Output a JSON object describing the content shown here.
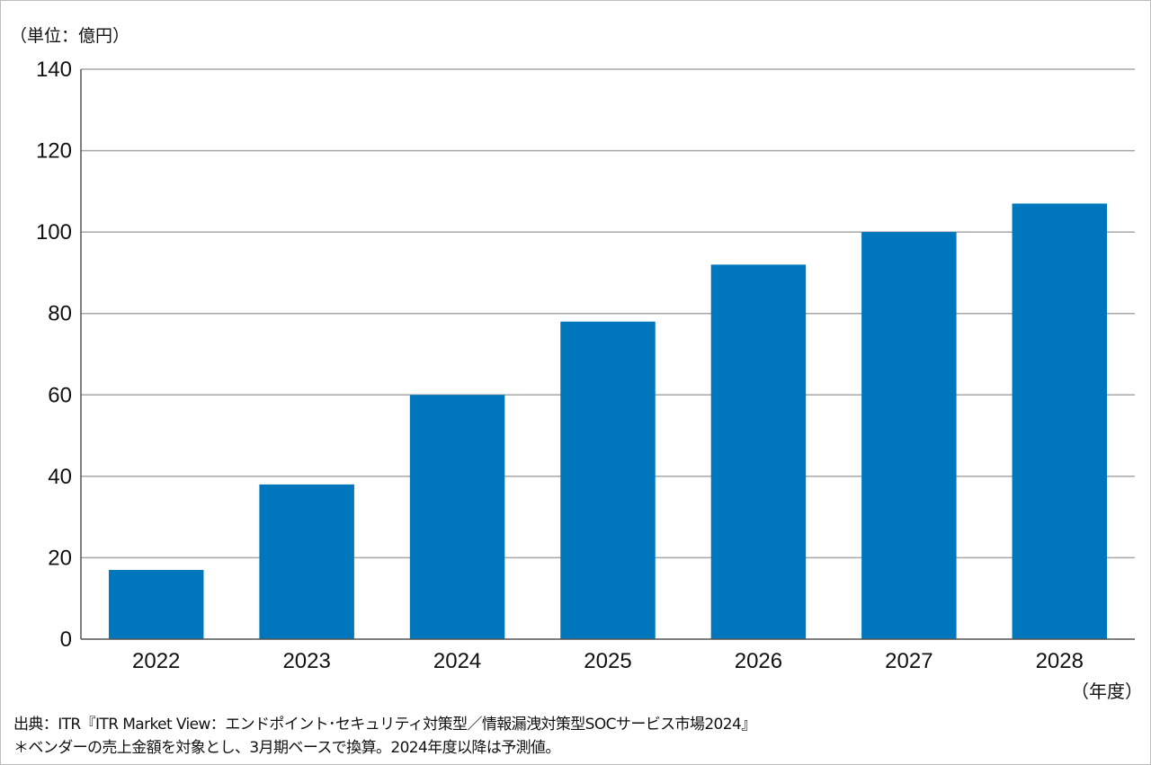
{
  "unit_label": "（単位：億円）",
  "x_unit_label": "（年度）",
  "notes": {
    "source": "出典：ITR『ITR Market View：エンドポイント･セキュリティ対策型／情報漏洩対策型SOCサービス市場2024』",
    "footnote": "＊ベンダーの売上金額を対象とし、3月期ベースで換算。2024年度以降は予測値。"
  },
  "colors": {
    "bar": "#0077bd",
    "grid": "#a6a6a6",
    "axis": "#555555"
  },
  "chart_data": {
    "type": "bar",
    "categories": [
      "2022",
      "2023",
      "2024",
      "2025",
      "2026",
      "2027",
      "2028"
    ],
    "values": [
      17,
      38,
      60,
      78,
      92,
      100,
      107
    ],
    "ylim": [
      0,
      140
    ],
    "yticks": [
      0,
      20,
      40,
      60,
      80,
      100,
      120,
      140
    ],
    "grid": true,
    "legend": "none"
  }
}
